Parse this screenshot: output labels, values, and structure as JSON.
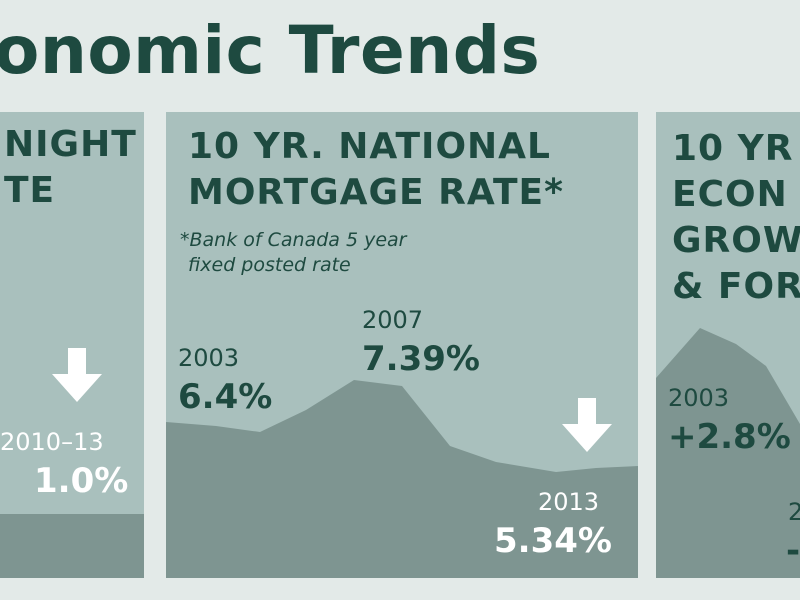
{
  "header": {
    "title": "onomic Trends"
  },
  "panels": {
    "left": {
      "title_line1": "NIGHT",
      "title_line2": "TE",
      "year": "2010–13",
      "value": "1.0%",
      "trend_icon": "down-arrow-icon"
    },
    "middle": {
      "title_line1": "10 YR. NATIONAL",
      "title_line2": "MORTGAGE RATE*",
      "note_line1": "*Bank of Canada 5 year",
      "note_line2": "fixed posted rate",
      "label_2003_year": "2003",
      "label_2003_value": "6.4%",
      "label_2007_year": "2007",
      "label_2007_value": "7.39%",
      "label_2013_year": "2013",
      "label_2013_value": "5.34%",
      "trend_icon": "down-arrow-icon"
    },
    "right": {
      "title_line1": "10 YR",
      "title_line2": "ECON",
      "title_line3": "GROW",
      "title_line4": "& FOR",
      "year": "2003",
      "value": "+2.8%",
      "partial_year": "2",
      "partial_value": "-"
    }
  },
  "colors": {
    "background": "#e3eae8",
    "panel": "#a9c0bd",
    "area": "#7e9591",
    "title": "#1e4a40",
    "highlight_text": "#ffffff"
  }
}
